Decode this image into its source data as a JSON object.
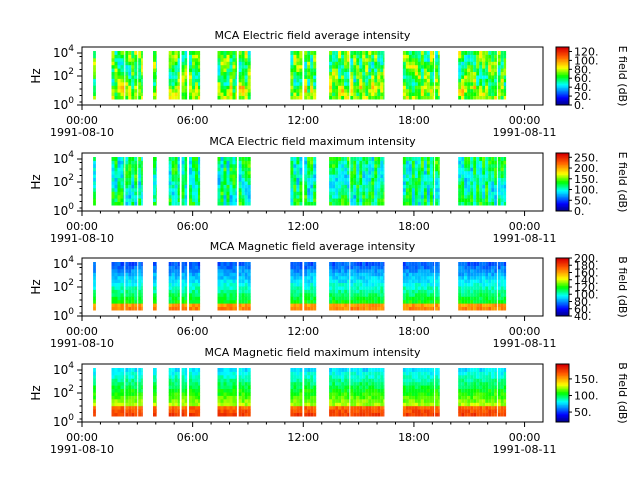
{
  "chart_data": [
    {
      "type": "heatmap",
      "title": "MCA  Electric field average intensity",
      "ylabel": "Hz",
      "y_scale": "log",
      "y_ticks": [
        "10^0",
        "10^2",
        "10^4"
      ],
      "x_ticks": [
        "00:00\n1991-08-10",
        "06:00",
        "12:00",
        "18:00",
        "00:00\n1991-08-11"
      ],
      "colorbar": {
        "label": "E field (dB)",
        "range": [
          0,
          130
        ],
        "ticks": [
          "0.",
          "20.",
          "40.",
          "60.",
          "80.",
          "100.",
          "120."
        ]
      },
      "data_hours": [
        [
          0.6,
          0.75
        ],
        [
          1.6,
          2.3
        ],
        [
          2.35,
          3.0
        ],
        [
          3.05,
          3.3
        ],
        [
          3.85,
          4.05
        ],
        [
          4.7,
          5.3
        ],
        [
          5.4,
          5.7
        ],
        [
          5.8,
          6.4
        ],
        [
          7.35,
          8.4
        ],
        [
          8.5,
          9.15
        ],
        [
          11.3,
          11.95
        ],
        [
          12.05,
          12.7
        ],
        [
          13.4,
          14.5
        ],
        [
          14.55,
          16.4
        ],
        [
          17.4,
          19.1
        ],
        [
          19.15,
          19.4
        ],
        [
          20.4,
          22.5
        ],
        [
          22.55,
          23.0
        ]
      ],
      "palette": "avg_e"
    },
    {
      "type": "heatmap",
      "title": "MCA  Electric field maximum intensity",
      "ylabel": "Hz",
      "y_scale": "log",
      "y_ticks": [
        "10^0",
        "10^2",
        "10^4"
      ],
      "x_ticks": [
        "00:00\n1991-08-10",
        "06:00",
        "12:00",
        "18:00",
        "00:00\n1991-08-11"
      ],
      "colorbar": {
        "label": "E field (dB)",
        "range": [
          0,
          270
        ],
        "ticks": [
          "0.",
          "50.",
          "100.",
          "150.",
          "200.",
          "250."
        ]
      },
      "data_hours": [
        [
          0.6,
          0.75
        ],
        [
          1.6,
          2.3
        ],
        [
          2.35,
          3.0
        ],
        [
          3.05,
          3.3
        ],
        [
          3.85,
          4.05
        ],
        [
          4.7,
          5.3
        ],
        [
          5.4,
          5.7
        ],
        [
          5.8,
          6.4
        ],
        [
          7.35,
          8.4
        ],
        [
          8.5,
          9.15
        ],
        [
          11.3,
          11.95
        ],
        [
          12.05,
          12.7
        ],
        [
          13.4,
          14.5
        ],
        [
          14.55,
          16.4
        ],
        [
          17.4,
          19.1
        ],
        [
          19.15,
          19.4
        ],
        [
          20.4,
          22.5
        ],
        [
          22.55,
          23.0
        ]
      ],
      "palette": "max_e"
    },
    {
      "type": "heatmap",
      "title": "MCA  Magnetic field average intensity",
      "ylabel": "Hz",
      "y_scale": "log",
      "y_ticks": [
        "10^0",
        "10^2",
        "10^4"
      ],
      "x_ticks": [
        "00:00\n1991-08-10",
        "06:00",
        "12:00",
        "18:00",
        "00:00\n1991-08-11"
      ],
      "colorbar": {
        "label": "B field (dB)",
        "range": [
          40,
          200
        ],
        "ticks": [
          "40.",
          "60.",
          "80.",
          "100.",
          "120.",
          "140.",
          "160.",
          "180.",
          "200."
        ]
      },
      "data_hours": [
        [
          0.6,
          0.75
        ],
        [
          1.6,
          2.3
        ],
        [
          2.35,
          3.0
        ],
        [
          3.05,
          3.3
        ],
        [
          3.85,
          4.05
        ],
        [
          4.7,
          5.3
        ],
        [
          5.4,
          5.7
        ],
        [
          5.8,
          6.4
        ],
        [
          7.35,
          8.4
        ],
        [
          8.5,
          9.15
        ],
        [
          11.3,
          11.95
        ],
        [
          12.05,
          12.7
        ],
        [
          13.4,
          14.5
        ],
        [
          14.55,
          16.4
        ],
        [
          17.4,
          19.1
        ],
        [
          19.15,
          19.4
        ],
        [
          20.4,
          22.5
        ],
        [
          22.55,
          23.0
        ]
      ],
      "palette": "avg_b"
    },
    {
      "type": "heatmap",
      "title": "MCA  Magnetic field maximum intensity",
      "ylabel": "Hz",
      "y_scale": "log",
      "y_ticks": [
        "10^0",
        "10^2",
        "10^4"
      ],
      "x_ticks": [
        "00:00\n1991-08-10",
        "06:00",
        "12:00",
        "18:00",
        "00:00\n1991-08-11"
      ],
      "colorbar": {
        "label": "B field (dB)",
        "range": [
          20,
          195
        ],
        "ticks": [
          "50.",
          "100.",
          "150."
        ]
      },
      "data_hours": [
        [
          0.6,
          0.75
        ],
        [
          1.6,
          2.3
        ],
        [
          2.35,
          3.0
        ],
        [
          3.05,
          3.3
        ],
        [
          3.85,
          4.05
        ],
        [
          4.7,
          5.3
        ],
        [
          5.4,
          5.7
        ],
        [
          5.8,
          6.4
        ],
        [
          7.35,
          8.4
        ],
        [
          8.5,
          9.15
        ],
        [
          11.3,
          11.95
        ],
        [
          12.05,
          12.7
        ],
        [
          13.4,
          14.5
        ],
        [
          14.55,
          16.4
        ],
        [
          17.4,
          19.1
        ],
        [
          19.15,
          19.4
        ],
        [
          20.4,
          22.5
        ],
        [
          22.55,
          23.0
        ]
      ],
      "palette": "max_b"
    }
  ]
}
